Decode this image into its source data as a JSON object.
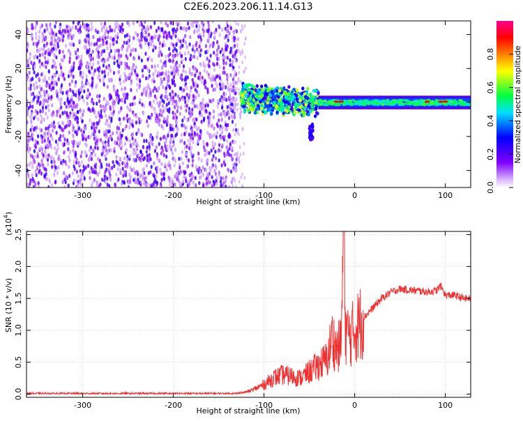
{
  "title": "C2E6.2023.206.11.14.G13",
  "chart_data": [
    {
      "type": "heatmap",
      "xlabel": "Height of straight line (km)",
      "ylabel": "Frequency (Hz)",
      "xlim": [
        -362,
        128
      ],
      "ylim": [
        -50,
        48
      ],
      "x_ticks": [
        -300,
        -200,
        -100,
        0,
        100
      ],
      "y_ticks": [
        -40,
        -20,
        0,
        20,
        40
      ],
      "colorbar": {
        "label": "Normalized spectral amplitude",
        "range": [
          0.0,
          1.0
        ],
        "ticks": [
          "0.0",
          "0.2",
          "0.4",
          "0.6",
          "0.8"
        ],
        "colors": [
          "#ffffff",
          "#a000ff",
          "#0000ff",
          "#00ffff",
          "#00ff00",
          "#ffff00",
          "#ff8000",
          "#ff0000",
          "#ff0080"
        ]
      },
      "description_regions": [
        {
          "x_range": [
            -362,
            -130
          ],
          "freq_range": [
            -50,
            48
          ],
          "amplitude": 0.15
        },
        {
          "x_range": [
            -130,
            -40
          ],
          "freq_range": [
            -8,
            10
          ],
          "amplitude": 0.45
        },
        {
          "x_range": [
            -40,
            128
          ],
          "freq_range": [
            -3,
            3
          ],
          "amplitude": 0.55
        }
      ]
    },
    {
      "type": "line",
      "xlabel": "Height of straight line (km)",
      "ylabel": "SNR (10 * v/v)",
      "scale_note": "(x10",
      "scale_exp": "4",
      "scale_close": ")",
      "xlim": [
        -362,
        128
      ],
      "ylim": [
        -0.05,
        2.55
      ],
      "x_ticks": [
        -300,
        -200,
        -100,
        0,
        100
      ],
      "y_ticks": [
        "0.0",
        "0.5",
        "1.0",
        "1.5",
        "2.0",
        "2.5"
      ],
      "color": "#f03030",
      "series": [
        {
          "x": [
            -362,
            -300,
            -200,
            -130,
            -115,
            -100,
            -90,
            -80,
            -70,
            -60,
            -50,
            -40,
            -30,
            -25,
            -20,
            -15,
            -12,
            -10,
            -5,
            0,
            10,
            20,
            30,
            40,
            50,
            60,
            70,
            80,
            90,
            95,
            100,
            110,
            120,
            128
          ],
          "y": [
            0.0,
            0.0,
            0.0,
            0.0,
            0.05,
            0.15,
            0.25,
            0.3,
            0.28,
            0.25,
            0.35,
            0.45,
            0.55,
            0.9,
            0.7,
            0.8,
            2.55,
            1.0,
            0.9,
            1.0,
            1.2,
            1.35,
            1.5,
            1.6,
            1.65,
            1.63,
            1.62,
            1.6,
            1.62,
            1.7,
            1.55,
            1.55,
            1.5,
            1.5
          ]
        }
      ]
    }
  ]
}
